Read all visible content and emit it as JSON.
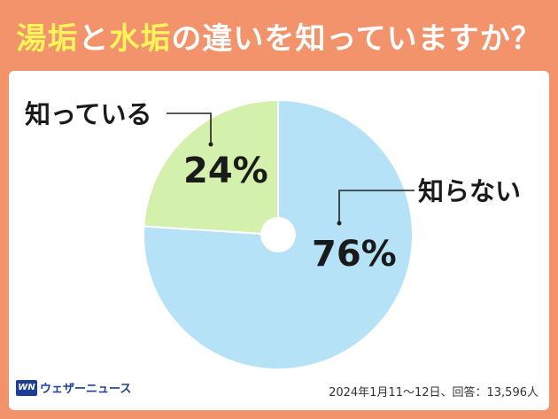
{
  "title": {
    "part1": "湯垢",
    "part2": "と",
    "part3": "水垢",
    "part4": "の違いを知っていますか？"
  },
  "chart_data": {
    "type": "pie",
    "title": "湯垢と水垢の違いを知っていますか？",
    "slices": [
      {
        "label": "知らない",
        "value": 76,
        "display": "76%",
        "color": "#b5e2f6"
      },
      {
        "label": "知っている",
        "value": 24,
        "display": "24%",
        "color": "#d3f0ac"
      }
    ],
    "start": "top",
    "direction": "clockwise",
    "donut_hole": true
  },
  "footer": {
    "logo_mark": "WN",
    "logo_text": "ウェザーニュース",
    "source": "2024年1月11～12日、回答：13,596人"
  },
  "colors": {
    "background": "#f2936b",
    "panel": "#ffffff",
    "title_text": "#ffffff",
    "title_highlight": "#fff45a",
    "slice_edge": "#ffffff",
    "leader_line": "#222222"
  }
}
